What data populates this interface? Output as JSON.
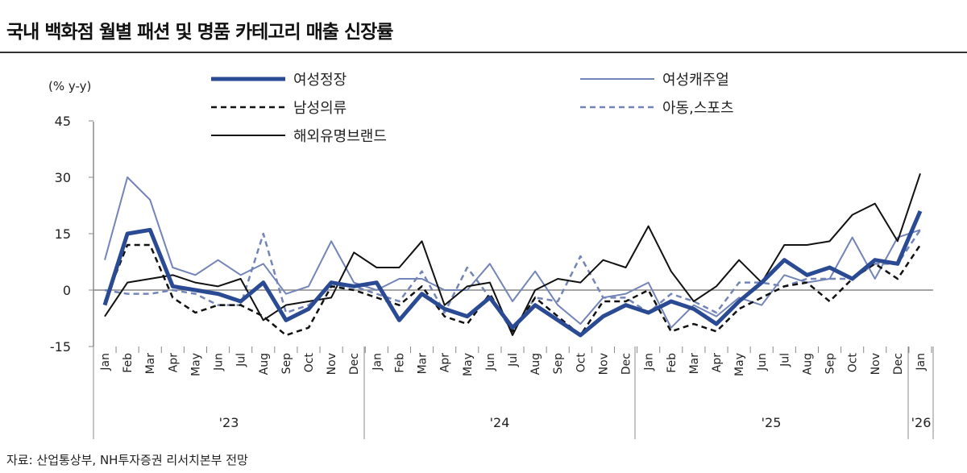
{
  "title": "국내 백화점 월별 패션 및 명품 카테고리 매출 신장률",
  "source": "자료: 산업통상부, NH투자증권 리서치본부 전망",
  "chart_data": {
    "type": "line",
    "title": "국내 백화점 월별 패션 및 명품 카테고리 매출 신장률",
    "ylabel": "(% y-y)",
    "ylim": [
      -15,
      45
    ],
    "yticks": [
      45,
      30,
      15,
      0,
      -15
    ],
    "months": [
      "Jan",
      "Feb",
      "Mar",
      "Apr",
      "May",
      "Jun",
      "Jul",
      "Aug",
      "Sep",
      "Oct",
      "Nov",
      "Dec",
      "Jan",
      "Feb",
      "Mar",
      "Apr",
      "May",
      "Jun",
      "Jul",
      "Aug",
      "Sep",
      "Oct",
      "Nov",
      "Dec",
      "Jan",
      "Feb",
      "Mar",
      "Apr",
      "May",
      "Jun",
      "Jul",
      "Aug",
      "Sep",
      "Oct",
      "Nov",
      "Dec",
      "Jan"
    ],
    "years": [
      "'23",
      "'24",
      "'25",
      "'26"
    ],
    "legend": "top",
    "series": [
      {
        "name": "여성정장",
        "color": "#2b4a94",
        "style": "thick",
        "values": [
          -4,
          15,
          16,
          1,
          0,
          -1,
          -3,
          2,
          -8,
          -5,
          2,
          1,
          2,
          -8,
          -1,
          -5,
          -7,
          -2,
          -10,
          -4,
          -8,
          -12,
          -7,
          -4,
          -6,
          -3,
          -5,
          -9,
          -3,
          2,
          8,
          4,
          6,
          3,
          8,
          7,
          21
        ]
      },
      {
        "name": "여성캐주얼",
        "color": "#7384b8",
        "style": "thin",
        "values": [
          8,
          30,
          24,
          6,
          4,
          8,
          4,
          7,
          -1,
          1,
          13,
          2,
          0,
          3,
          3,
          0,
          0,
          7,
          -3,
          5,
          -4,
          -9,
          -2,
          -1,
          2,
          -10,
          -4,
          -7,
          -2,
          -4,
          4,
          2,
          3,
          14,
          3,
          14,
          16
        ]
      },
      {
        "name": "남성의류",
        "color": "#111111",
        "style": "dash",
        "values": [
          -3,
          12,
          12,
          -2,
          -6,
          -4,
          -4,
          -7,
          -12,
          -10,
          1,
          0,
          -2,
          -4,
          1,
          -7,
          -9,
          -1,
          -11,
          -2,
          -7,
          -12,
          -3,
          -3,
          0,
          -11,
          -9,
          -11,
          -5,
          -2,
          1,
          2,
          -3,
          3,
          7,
          3,
          12
        ]
      },
      {
        "name": "아동,스포츠",
        "color": "#7384b8",
        "style": "dash",
        "values": [
          0,
          -1,
          -1,
          0,
          -1,
          -4,
          -4,
          15,
          -6,
          -4,
          1,
          1,
          -1,
          -3,
          5,
          -6,
          6,
          -2,
          -11,
          -2,
          -3,
          9,
          -2,
          -2,
          -6,
          -1,
          -3,
          -6,
          2,
          2,
          1,
          3,
          3,
          3,
          7,
          7,
          16
        ]
      },
      {
        "name": "해외유명브랜드",
        "color": "#111111",
        "style": "thinblack",
        "values": [
          -7,
          2,
          3,
          4,
          2,
          1,
          3,
          -8,
          -4,
          -3,
          -2,
          10,
          6,
          6,
          13,
          -4,
          1,
          2,
          -12,
          0,
          3,
          2,
          8,
          6,
          17,
          5,
          -3,
          1,
          8,
          2,
          12,
          12,
          13,
          20,
          23,
          13,
          31
        ]
      }
    ]
  }
}
